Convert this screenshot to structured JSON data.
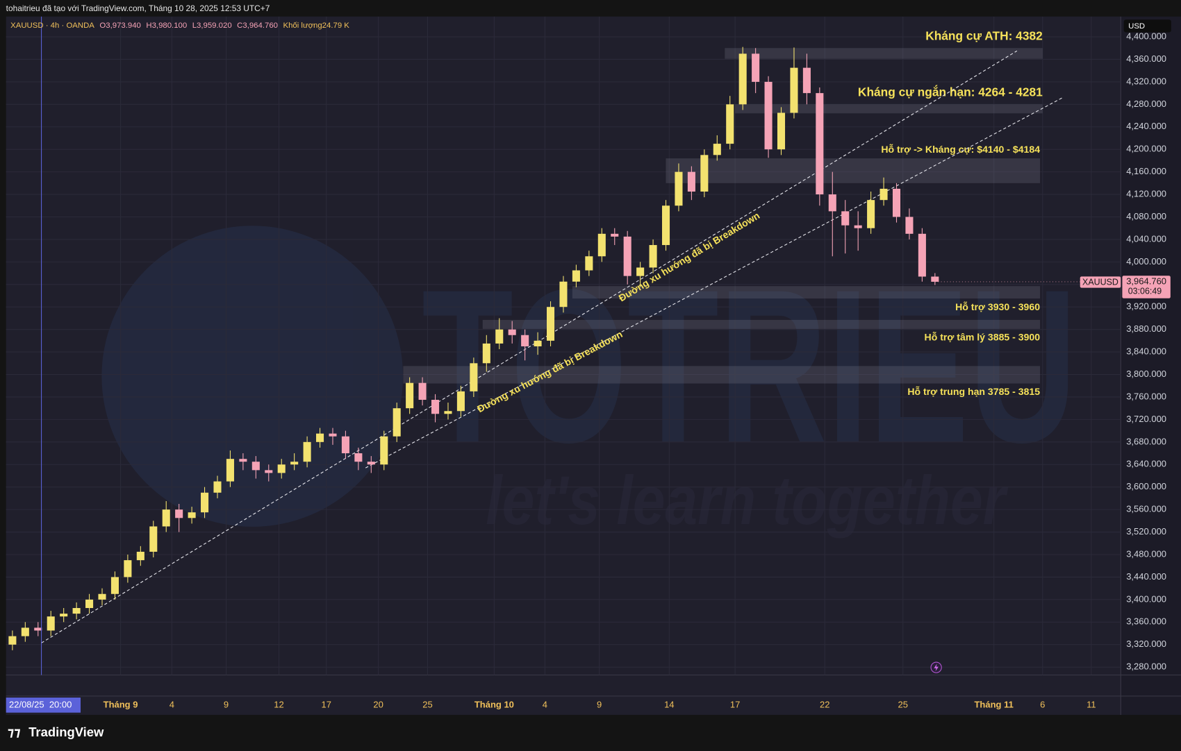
{
  "header": {
    "credit": "tohaitrieu đã tạo với TradingView.com, Tháng 10 28, 2025 12:53 UTC+7",
    "symbol": "XAUUSD · 4h · OANDA",
    "open": "O3,973.940",
    "high": "H3,980.100",
    "low": "L3,959.020",
    "close": "C3,964.760",
    "volume": "Khối lượng24.79 K",
    "currency": "USD",
    "brand": "TradingView"
  },
  "watermark": {
    "name": "TOTRIEU",
    "slogan": "let's learn together"
  },
  "chart_data": {
    "type": "candlestick",
    "xlim": [
      -0.5,
      86.5
    ],
    "ylim": [
      3266,
      4436
    ],
    "grid": true,
    "up_color": "#f3e26f",
    "down_color": "#f5a3b6",
    "open": [
      3320,
      3335,
      3350,
      3345,
      3370,
      3375,
      3385,
      3400,
      3410,
      3440,
      3470,
      3485,
      3530,
      3560,
      3545,
      3555,
      3590,
      3610,
      3650,
      3645,
      3630,
      3625,
      3640,
      3645,
      3680,
      3695,
      3690,
      3660,
      3645,
      3640,
      3690,
      3740,
      3785,
      3755,
      3730,
      3735,
      3770,
      3820,
      3855,
      3880,
      3870,
      3850,
      3860,
      3920,
      3965,
      3985,
      4010,
      4050,
      4045,
      3975,
      3990,
      4030,
      4100,
      4160,
      4125,
      4190,
      4210,
      4280,
      4370,
      4320,
      4200,
      4265,
      4345,
      4300,
      4120,
      4090,
      4065,
      4060,
      4110,
      4130,
      4080,
      4050,
      3973.94
    ],
    "high": [
      3345,
      3360,
      3360,
      3380,
      3385,
      3395,
      3410,
      3420,
      3450,
      3480,
      3495,
      3540,
      3575,
      3570,
      3565,
      3600,
      3620,
      3665,
      3660,
      3655,
      3640,
      3650,
      3660,
      3690,
      3705,
      3705,
      3700,
      3670,
      3655,
      3700,
      3750,
      3795,
      3795,
      3765,
      3750,
      3780,
      3830,
      3870,
      3900,
      3895,
      3880,
      3875,
      3930,
      3975,
      3995,
      4020,
      4060,
      4060,
      4055,
      4000,
      4040,
      4110,
      4175,
      4170,
      4200,
      4225,
      4295,
      4382,
      4380,
      4330,
      4275,
      4381,
      4370,
      4310,
      4160,
      4110,
      4090,
      4125,
      4150,
      4140,
      4095,
      4060,
      3980.1
    ],
    "low": [
      3310,
      3325,
      3335,
      3335,
      3360,
      3365,
      3375,
      3390,
      3400,
      3430,
      3460,
      3475,
      3520,
      3520,
      3535,
      3545,
      3580,
      3600,
      3630,
      3615,
      3610,
      3615,
      3630,
      3635,
      3670,
      3675,
      3650,
      3630,
      3625,
      3630,
      3680,
      3730,
      3745,
      3715,
      3720,
      3725,
      3760,
      3805,
      3845,
      3855,
      3825,
      3835,
      3850,
      3910,
      3955,
      3975,
      4000,
      4030,
      3960,
      3955,
      3980,
      4020,
      4090,
      4110,
      4115,
      4180,
      4200,
      4270,
      4300,
      4185,
      4190,
      4255,
      4280,
      4100,
      4010,
      4015,
      4020,
      4050,
      4100,
      4070,
      4040,
      3965,
      3959.02
    ],
    "close": [
      3335,
      3350,
      3345,
      3370,
      3375,
      3385,
      3400,
      3410,
      3440,
      3470,
      3485,
      3530,
      3560,
      3545,
      3555,
      3590,
      3610,
      3650,
      3645,
      3630,
      3625,
      3640,
      3645,
      3680,
      3695,
      3690,
      3660,
      3645,
      3640,
      3690,
      3740,
      3785,
      3755,
      3730,
      3735,
      3770,
      3820,
      3855,
      3880,
      3870,
      3850,
      3860,
      3920,
      3965,
      3985,
      4010,
      4050,
      4045,
      3975,
      3990,
      4030,
      4100,
      4160,
      4125,
      4190,
      4210,
      4280,
      4370,
      4320,
      4200,
      4265,
      4345,
      4300,
      4120,
      4090,
      4065,
      4060,
      4110,
      4130,
      4080,
      4050,
      3973.94,
      3964.76
    ],
    "yticks": [
      {
        "value": 3280,
        "label": "3,280.000"
      },
      {
        "value": 3320,
        "label": "3,320.000"
      },
      {
        "value": 3360,
        "label": "3,360.000"
      },
      {
        "value": 3400,
        "label": "3,400.000"
      },
      {
        "value": 3440,
        "label": "3,440.000"
      },
      {
        "value": 3480,
        "label": "3,480.000"
      },
      {
        "value": 3520,
        "label": "3,520.000"
      },
      {
        "value": 3560,
        "label": "3,560.000"
      },
      {
        "value": 3600,
        "label": "3,600.000"
      },
      {
        "value": 3640,
        "label": "3,640.000"
      },
      {
        "value": 3680,
        "label": "3,680.000"
      },
      {
        "value": 3720,
        "label": "3,720.000"
      },
      {
        "value": 3760,
        "label": "3,760.000"
      },
      {
        "value": 3800,
        "label": "3,800.000"
      },
      {
        "value": 3840,
        "label": "3,840.000"
      },
      {
        "value": 3880,
        "label": "3,880.000"
      },
      {
        "value": 3920,
        "label": "3,920.000"
      },
      {
        "value": 3960,
        "label": "3,960.000"
      },
      {
        "value": 4000,
        "label": "4,000.000"
      },
      {
        "value": 4040,
        "label": "4,040.000"
      },
      {
        "value": 4080,
        "label": "4,080.000"
      },
      {
        "value": 4120,
        "label": "4,120.000"
      },
      {
        "value": 4160,
        "label": "4,160.000"
      },
      {
        "value": 4200,
        "label": "4,200.000"
      },
      {
        "value": 4240,
        "label": "4,240.000"
      },
      {
        "value": 4280,
        "label": "4,280.000"
      },
      {
        "value": 4320,
        "label": "4,320.000"
      },
      {
        "value": 4360,
        "label": "4,360.000"
      },
      {
        "value": 4400,
        "label": "4,400.000"
      }
    ],
    "xticks": [
      {
        "value": 8.44,
        "label": "Tháng 9"
      },
      {
        "value": 12.44,
        "label": "4"
      },
      {
        "value": 16.68,
        "label": "9"
      },
      {
        "value": 20.8,
        "label": "12"
      },
      {
        "value": 24.5,
        "label": "17"
      },
      {
        "value": 28.56,
        "label": "20"
      },
      {
        "value": 32.4,
        "label": "25"
      },
      {
        "value": 37.6,
        "label": "Tháng 10"
      },
      {
        "value": 41.56,
        "label": "4"
      },
      {
        "value": 45.8,
        "label": "9"
      },
      {
        "value": 51.26,
        "label": "14"
      },
      {
        "value": 56.4,
        "label": "17"
      },
      {
        "value": 63.4,
        "label": "22"
      },
      {
        "value": 69.5,
        "label": "25"
      },
      {
        "value": 76.6,
        "label": "Tháng 11"
      },
      {
        "value": 80.4,
        "label": "6"
      },
      {
        "value": 84.2,
        "label": "11"
      }
    ],
    "crosshair": {
      "x": 2.26,
      "label": "22/08/25  20:00",
      "color": "#5b62d9"
    },
    "last_price": {
      "value": 3964.76,
      "label": "3,964.760",
      "symbol": "XAUUSD",
      "countdown": "03:06:49",
      "color": "#f5a3b6"
    },
    "zones": [
      {
        "low": 4361,
        "high": 4380,
        "x0": 55.6,
        "x1": 80.4,
        "label": "Kháng cự ATH: 4382",
        "side": "above",
        "size": "large"
      },
      {
        "low": 4264,
        "high": 4280,
        "x0": 56.4,
        "x1": 80.4,
        "label": "Kháng cự ngắn hạn: 4264 - 4281",
        "side": "above",
        "size": "large"
      },
      {
        "low": 4140,
        "high": 4184,
        "x0": 51.0,
        "x1": 80.2,
        "label": "Hỗ trợ -> Kháng cự: $4140 - $4184",
        "side": "above",
        "size": "small"
      },
      {
        "low": 3935,
        "high": 3957,
        "x0": 43.7,
        "x1": 80.2,
        "label": "Hỗ trợ 3930 - 3960",
        "side": "below",
        "size": "small"
      },
      {
        "low": 3881,
        "high": 3897,
        "x0": 36.7,
        "x1": 80.2,
        "label": "Hỗ trợ tâm lý 3885 - 3900",
        "side": "below",
        "size": "small"
      },
      {
        "low": 3784,
        "high": 3815,
        "x0": 30.5,
        "x1": 80.2,
        "label": "Hỗ trợ trung hạn 3785 - 3815",
        "side": "below",
        "size": "small"
      }
    ],
    "trendlines": [
      {
        "x": [
          2.26,
          78.4
        ],
        "y": [
          3323,
          4375
        ],
        "label": "Đường xu hướng đã bị Breakdown",
        "label_x": 52.85,
        "label_y": 4008
      },
      {
        "x": [
          27.56,
          81.97
        ],
        "y": [
          3634,
          4292
        ],
        "label": "Đường xu hướng đã bị Breakdown",
        "label_x": 41.97,
        "label_y": 3804
      }
    ]
  }
}
